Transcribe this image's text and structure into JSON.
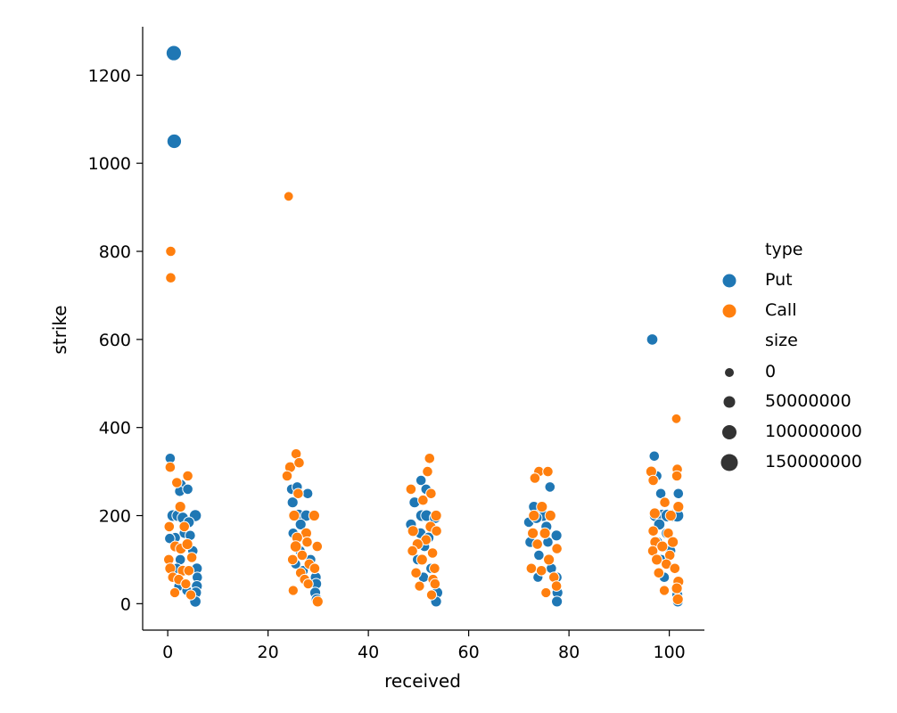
{
  "chart_data": {
    "type": "scatter",
    "xlabel": "received",
    "ylabel": "strike",
    "xlim": [
      -5,
      107
    ],
    "ylim": [
      -60,
      1310
    ],
    "x_ticks": [
      0,
      20,
      40,
      60,
      80,
      100
    ],
    "y_ticks": [
      0,
      200,
      400,
      600,
      800,
      1000,
      1200
    ],
    "legend": {
      "position": "right",
      "hue_title": "type",
      "hue_entries": [
        {
          "label": "Put",
          "color": "#1f77b4"
        },
        {
          "label": "Call",
          "color": "#ff7f0e"
        }
      ],
      "size_title": "size",
      "size_entries": [
        {
          "label": "0",
          "value": 0
        },
        {
          "label": "50000000",
          "value": 50000000
        },
        {
          "label": "100000000",
          "value": 100000000
        },
        {
          "label": "150000000",
          "value": 150000000
        }
      ]
    },
    "series": [
      {
        "name": "Put",
        "color": "#1f77b4",
        "points": [
          [
            1.2,
            1250,
            100000000
          ],
          [
            1.3,
            1050,
            80000000
          ],
          [
            96.6,
            600,
            20000000
          ],
          [
            97.0,
            335,
            10000000
          ],
          [
            0.5,
            330,
            10000000
          ],
          [
            2.6,
            270,
            15000000
          ],
          [
            2.4,
            255,
            10000000
          ],
          [
            4.0,
            260,
            10000000
          ],
          [
            5.5,
            200,
            30000000
          ],
          [
            1.0,
            200,
            25000000
          ],
          [
            2.0,
            200,
            25000000
          ],
          [
            3.0,
            195,
            20000000
          ],
          [
            4.2,
            185,
            15000000
          ],
          [
            3.3,
            160,
            10000000
          ],
          [
            4.5,
            155,
            10000000
          ],
          [
            1.5,
            150,
            10000000
          ],
          [
            0.4,
            148,
            10000000
          ],
          [
            5.0,
            120,
            10000000
          ],
          [
            2.5,
            100,
            10000000
          ],
          [
            1.8,
            80,
            10000000
          ],
          [
            5.8,
            80,
            15000000
          ],
          [
            5.9,
            60,
            10000000
          ],
          [
            5.8,
            40,
            15000000
          ],
          [
            5.6,
            25,
            20000000
          ],
          [
            5.5,
            5,
            20000000
          ],
          [
            2.2,
            40,
            8000000
          ],
          [
            3.8,
            30,
            8000000
          ],
          [
            24.7,
            260,
            10000000
          ],
          [
            25.8,
            265,
            10000000
          ],
          [
            27.9,
            250,
            10000000
          ],
          [
            24.9,
            230,
            15000000
          ],
          [
            25.1,
            200,
            20000000
          ],
          [
            26.1,
            200,
            40000000
          ],
          [
            27.6,
            200,
            20000000
          ],
          [
            26.5,
            180,
            15000000
          ],
          [
            25.0,
            160,
            10000000
          ],
          [
            27.1,
            150,
            10000000
          ],
          [
            26.4,
            120,
            10000000
          ],
          [
            28.5,
            100,
            10000000
          ],
          [
            29.5,
            60,
            15000000
          ],
          [
            29.6,
            45,
            15000000
          ],
          [
            29.4,
            25,
            15000000
          ],
          [
            29.7,
            10,
            15000000
          ],
          [
            27.0,
            75,
            10000000
          ],
          [
            25.5,
            90,
            8000000
          ],
          [
            50.5,
            280,
            10000000
          ],
          [
            51.5,
            260,
            10000000
          ],
          [
            52.6,
            250,
            10000000
          ],
          [
            49.2,
            230,
            15000000
          ],
          [
            50.6,
            200,
            25000000
          ],
          [
            51.6,
            200,
            25000000
          ],
          [
            53.3,
            195,
            20000000
          ],
          [
            48.5,
            180,
            15000000
          ],
          [
            50.4,
            160,
            15000000
          ],
          [
            52.0,
            150,
            15000000
          ],
          [
            51.2,
            130,
            10000000
          ],
          [
            49.8,
            100,
            10000000
          ],
          [
            52.5,
            80,
            10000000
          ],
          [
            53.7,
            25,
            20000000
          ],
          [
            53.5,
            5,
            15000000
          ],
          [
            51.0,
            60,
            10000000
          ],
          [
            73.0,
            220,
            15000000
          ],
          [
            74.4,
            205,
            15000000
          ],
          [
            76.2,
            265,
            10000000
          ],
          [
            72.0,
            185,
            10000000
          ],
          [
            74.8,
            200,
            25000000
          ],
          [
            73.5,
            195,
            20000000
          ],
          [
            75.5,
            175,
            15000000
          ],
          [
            77.5,
            155,
            15000000
          ],
          [
            72.3,
            140,
            15000000
          ],
          [
            75.8,
            140,
            10000000
          ],
          [
            74.0,
            110,
            10000000
          ],
          [
            76.5,
            80,
            10000000
          ],
          [
            77.6,
            60,
            10000000
          ],
          [
            77.7,
            25,
            15000000
          ],
          [
            77.6,
            5,
            15000000
          ],
          [
            73.8,
            60,
            8000000
          ],
          [
            97.5,
            290,
            10000000
          ],
          [
            98.3,
            250,
            10000000
          ],
          [
            101.8,
            250,
            10000000
          ],
          [
            97.2,
            200,
            30000000
          ],
          [
            98.6,
            200,
            40000000
          ],
          [
            99.6,
            200,
            40000000
          ],
          [
            100.6,
            200,
            40000000
          ],
          [
            101.6,
            200,
            45000000
          ],
          [
            98.0,
            180,
            20000000
          ],
          [
            99.5,
            160,
            15000000
          ],
          [
            97.6,
            140,
            15000000
          ],
          [
            100.2,
            120,
            15000000
          ],
          [
            98.4,
            100,
            10000000
          ],
          [
            101.0,
            80,
            10000000
          ],
          [
            99.0,
            60,
            10000000
          ],
          [
            101.6,
            20,
            15000000
          ],
          [
            101.7,
            5,
            15000000
          ]
        ]
      },
      {
        "name": "Call",
        "color": "#ff7f0e",
        "points": [
          [
            0.6,
            800,
            10000000
          ],
          [
            0.6,
            740,
            10000000
          ],
          [
            24.1,
            925,
            5000000
          ],
          [
            101.4,
            420,
            5000000
          ],
          [
            0.5,
            310,
            10000000
          ],
          [
            4.0,
            290,
            10000000
          ],
          [
            1.8,
            275,
            10000000
          ],
          [
            2.5,
            220,
            15000000
          ],
          [
            0.3,
            175,
            10000000
          ],
          [
            3.3,
            175,
            10000000
          ],
          [
            1.5,
            130,
            15000000
          ],
          [
            2.6,
            125,
            15000000
          ],
          [
            3.9,
            135,
            15000000
          ],
          [
            4.8,
            105,
            10000000
          ],
          [
            0.2,
            100,
            10000000
          ],
          [
            0.5,
            80,
            15000000
          ],
          [
            3.0,
            75,
            15000000
          ],
          [
            4.2,
            75,
            10000000
          ],
          [
            1.0,
            60,
            10000000
          ],
          [
            2.2,
            55,
            10000000
          ],
          [
            3.6,
            45,
            8000000
          ],
          [
            1.4,
            25,
            8000000
          ],
          [
            4.6,
            20,
            8000000
          ],
          [
            25.6,
            340,
            10000000
          ],
          [
            24.4,
            310,
            15000000
          ],
          [
            26.2,
            320,
            10000000
          ],
          [
            23.8,
            290,
            10000000
          ],
          [
            26.0,
            250,
            10000000
          ],
          [
            25.2,
            200,
            15000000
          ],
          [
            29.2,
            200,
            15000000
          ],
          [
            27.6,
            160,
            15000000
          ],
          [
            25.8,
            150,
            15000000
          ],
          [
            27.8,
            140,
            10000000
          ],
          [
            25.5,
            130,
            20000000
          ],
          [
            29.8,
            130,
            10000000
          ],
          [
            26.8,
            110,
            10000000
          ],
          [
            24.9,
            100,
            10000000
          ],
          [
            28.2,
            90,
            10000000
          ],
          [
            29.3,
            80,
            10000000
          ],
          [
            26.5,
            70,
            10000000
          ],
          [
            27.3,
            55,
            10000000
          ],
          [
            28.0,
            45,
            8000000
          ],
          [
            29.9,
            5,
            15000000
          ],
          [
            25.0,
            30,
            8000000
          ],
          [
            52.2,
            330,
            10000000
          ],
          [
            51.8,
            300,
            10000000
          ],
          [
            48.5,
            260,
            10000000
          ],
          [
            52.5,
            250,
            10000000
          ],
          [
            50.9,
            235,
            10000000
          ],
          [
            53.5,
            200,
            15000000
          ],
          [
            52.4,
            175,
            15000000
          ],
          [
            48.9,
            165,
            15000000
          ],
          [
            53.6,
            165,
            10000000
          ],
          [
            51.5,
            145,
            10000000
          ],
          [
            49.8,
            135,
            15000000
          ],
          [
            48.8,
            120,
            10000000
          ],
          [
            52.8,
            115,
            10000000
          ],
          [
            50.7,
            100,
            15000000
          ],
          [
            53.2,
            80,
            10000000
          ],
          [
            49.5,
            70,
            10000000
          ],
          [
            52.9,
            55,
            10000000
          ],
          [
            53.3,
            45,
            10000000
          ],
          [
            50.2,
            40,
            8000000
          ],
          [
            52.6,
            20,
            8000000
          ],
          [
            74.0,
            300,
            10000000
          ],
          [
            75.8,
            300,
            10000000
          ],
          [
            73.2,
            285,
            10000000
          ],
          [
            74.6,
            220,
            15000000
          ],
          [
            73.0,
            200,
            15000000
          ],
          [
            76.3,
            200,
            15000000
          ],
          [
            72.8,
            160,
            15000000
          ],
          [
            75.2,
            160,
            15000000
          ],
          [
            77.6,
            125,
            10000000
          ],
          [
            73.7,
            135,
            10000000
          ],
          [
            76.0,
            100,
            15000000
          ],
          [
            72.5,
            80,
            10000000
          ],
          [
            74.5,
            75,
            10000000
          ],
          [
            77.0,
            60,
            10000000
          ],
          [
            77.5,
            40,
            10000000
          ],
          [
            75.4,
            25,
            8000000
          ],
          [
            96.4,
            300,
            15000000
          ],
          [
            101.6,
            305,
            10000000
          ],
          [
            96.8,
            280,
            10000000
          ],
          [
            101.5,
            290,
            10000000
          ],
          [
            99.1,
            230,
            10000000
          ],
          [
            101.8,
            220,
            15000000
          ],
          [
            97.1,
            205,
            15000000
          ],
          [
            100.3,
            200,
            15000000
          ],
          [
            96.8,
            165,
            10000000
          ],
          [
            99.8,
            160,
            10000000
          ],
          [
            97.2,
            140,
            15000000
          ],
          [
            100.7,
            140,
            15000000
          ],
          [
            98.6,
            130,
            15000000
          ],
          [
            96.7,
            120,
            10000000
          ],
          [
            100.1,
            110,
            10000000
          ],
          [
            97.5,
            100,
            15000000
          ],
          [
            99.4,
            90,
            10000000
          ],
          [
            101.1,
            80,
            10000000
          ],
          [
            97.9,
            70,
            10000000
          ],
          [
            101.8,
            50,
            15000000
          ],
          [
            101.5,
            35,
            15000000
          ],
          [
            99.0,
            30,
            8000000
          ],
          [
            101.7,
            10,
            15000000
          ]
        ]
      }
    ]
  }
}
